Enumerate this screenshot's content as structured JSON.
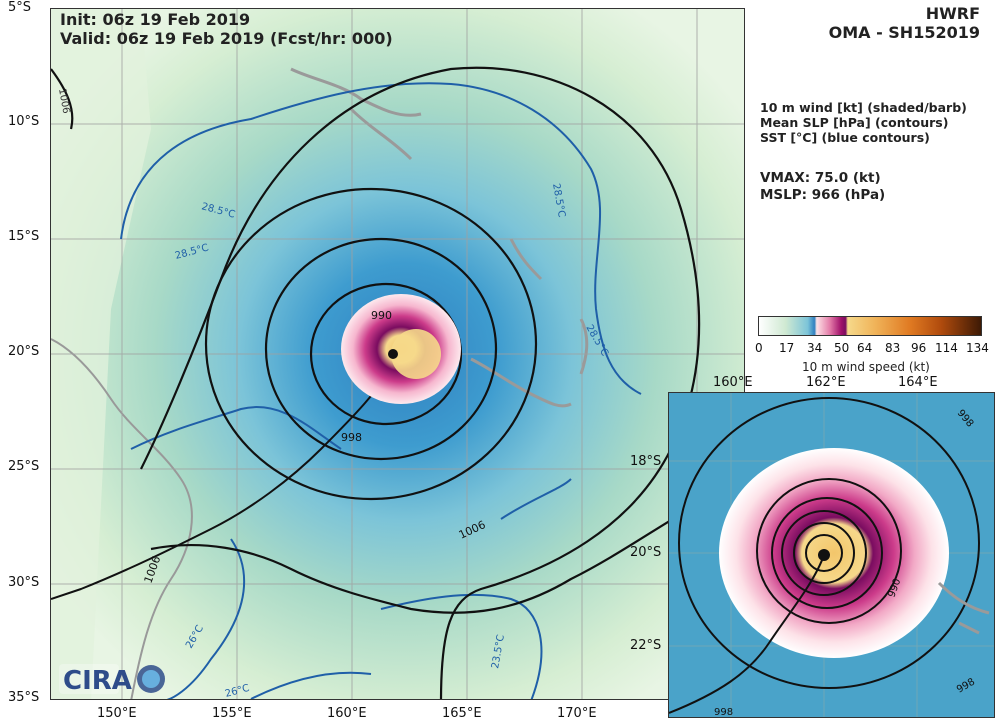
{
  "header": {
    "init": "Init:   06z 19 Feb 2019",
    "valid": "Valid: 06z 19 Feb 2019 (Fcst/hr: 000)",
    "model": "HWRF",
    "storm": "OMA - SH152019"
  },
  "legend": {
    "line1": "10 m wind [kt] (shaded/barb)",
    "line2": "Mean SLP [hPa] (contours)",
    "line3": "SST [°C] (blue contours)",
    "vmax": "VMAX:  75.0 (kt)",
    "mslp": "MSLP:  966 (hPa)"
  },
  "colorbar": {
    "label": "10 m wind speed (kt)",
    "ticks": [
      "0",
      "17",
      "34",
      "50",
      "64",
      "83",
      "96",
      "114",
      "134"
    ],
    "colors": [
      "#ffffff",
      "#d9efd6",
      "#6cc0d4",
      "#2f7fc0",
      "#fde2e6",
      "#cc3b8a",
      "#7a0c60",
      "#f6d98b",
      "#f0a14a",
      "#d86a14",
      "#8a3a0a",
      "#3e1a05"
    ]
  },
  "main_map": {
    "lat_labels": [
      "5°S",
      "10°S",
      "15°S",
      "20°S",
      "25°S",
      "30°S",
      "35°S"
    ],
    "lon_labels": [
      "150°E",
      "155°E",
      "160°E",
      "165°E",
      "170°E"
    ],
    "slp_labels": [
      "1006",
      "990",
      "998",
      "1006",
      "1006"
    ],
    "sst_labels": [
      "28.5°C",
      "28.5°C",
      "28.5°C",
      "28.5°C",
      "26°C",
      "23.5°C",
      "26°C"
    ]
  },
  "inset_map": {
    "lat_labels": [
      "18°S",
      "20°S",
      "22°S"
    ],
    "lon_labels": [
      "160°E",
      "162°E",
      "164°E"
    ],
    "slp_labels": [
      "998",
      "990",
      "998",
      "998"
    ]
  },
  "logo": {
    "text": "CIRA"
  }
}
